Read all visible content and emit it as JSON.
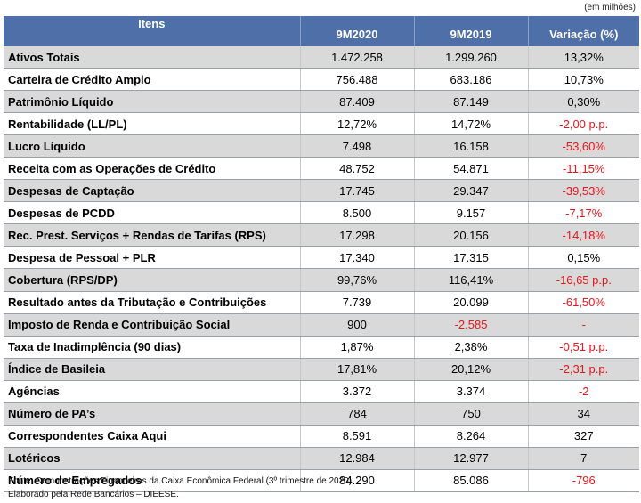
{
  "unit_note": "(em milhões)",
  "headers": {
    "item": "Itens",
    "col1": "9M2020",
    "col2": "9M2019",
    "col3": "Variação (%)"
  },
  "rows": [
    {
      "label": "Ativos Totais",
      "v2020": "1.472.258",
      "v2019": "1.299.260",
      "var": "13,32%",
      "neg2019": false,
      "negvar": false
    },
    {
      "label": "Carteira de Crédito Amplo",
      "v2020": "756.488",
      "v2019": "683.186",
      "var": "10,73%",
      "neg2019": false,
      "negvar": false
    },
    {
      "label": "Patrimônio Líquido",
      "v2020": "87.409",
      "v2019": "87.149",
      "var": "0,30%",
      "neg2019": false,
      "negvar": false
    },
    {
      "label": "Rentabilidade (LL/PL)",
      "v2020": "12,72%",
      "v2019": "14,72%",
      "var": "-2,00 p.p.",
      "neg2019": false,
      "negvar": true
    },
    {
      "label": "Lucro Líquido",
      "v2020": "7.498",
      "v2019": "16.158",
      "var": "-53,60%",
      "neg2019": false,
      "negvar": true
    },
    {
      "label": "Receita com as Operações de Crédito",
      "v2020": "48.752",
      "v2019": "54.871",
      "var": "-11,15%",
      "neg2019": false,
      "negvar": true
    },
    {
      "label": "Despesas de Captação",
      "v2020": "17.745",
      "v2019": "29.347",
      "var": "-39,53%",
      "neg2019": false,
      "negvar": true
    },
    {
      "label": "Despesas de PCDD",
      "v2020": "8.500",
      "v2019": "9.157",
      "var": "-7,17%",
      "neg2019": false,
      "negvar": true
    },
    {
      "label": "Rec. Prest. Serviços + Rendas de Tarifas (RPS)",
      "v2020": "17.298",
      "v2019": "20.156",
      "var": "-14,18%",
      "neg2019": false,
      "negvar": true
    },
    {
      "label": "Despesa de Pessoal + PLR",
      "v2020": "17.340",
      "v2019": "17.315",
      "var": "0,15%",
      "neg2019": false,
      "negvar": false
    },
    {
      "label": "Cobertura (RPS/DP)",
      "v2020": "99,76%",
      "v2019": "116,41%",
      "var": "-16,65 p.p.",
      "neg2019": false,
      "negvar": true
    },
    {
      "label": "Resultado antes da Tributação e Contribuições",
      "v2020": "7.739",
      "v2019": "20.099",
      "var": "-61,50%",
      "neg2019": false,
      "negvar": true
    },
    {
      "label": "Imposto de Renda e Contribuição Social",
      "v2020": "900",
      "v2019": "-2.585",
      "var": "-",
      "neg2019": true,
      "negvar": true
    },
    {
      "label": "Taxa de Inadimplência (90 dias)",
      "v2020": "1,87%",
      "v2019": "2,38%",
      "var": "-0,51 p.p.",
      "neg2019": false,
      "negvar": true
    },
    {
      "label": "Índice de Basileia",
      "v2020": "17,81%",
      "v2019": "20,12%",
      "var": "-2,31 p.p.",
      "neg2019": false,
      "negvar": true
    },
    {
      "label": "Agências",
      "v2020": "3.372",
      "v2019": "3.374",
      "var": "-2",
      "neg2019": false,
      "negvar": true
    },
    {
      "label": "Número de PA’s",
      "v2020": "784",
      "v2019": "750",
      "var": "34",
      "neg2019": false,
      "negvar": false
    },
    {
      "label": "Correspondentes Caixa Aqui",
      "v2020": "8.591",
      "v2019": "8.264",
      "var": "327",
      "neg2019": false,
      "negvar": false
    },
    {
      "label": "Lotéricos",
      "v2020": "12.984",
      "v2019": "12.977",
      "var": "7",
      "neg2019": false,
      "negvar": false
    },
    {
      "label": "Número de Empregados",
      "v2020": "84.290",
      "v2019": "85.086",
      "var": "-796",
      "neg2019": false,
      "negvar": true
    }
  ],
  "footer": {
    "source": "Fonte: Demonstrações Financeiras da Caixa Econômica Federal (3º trimestre de 2020).",
    "credit": "Elaborado pela Rede Bancários – DIEESE."
  },
  "colors": {
    "header_bg": "#4f6fa9",
    "band_bg": "#d9d9d9",
    "negative": "#e8151b"
  }
}
